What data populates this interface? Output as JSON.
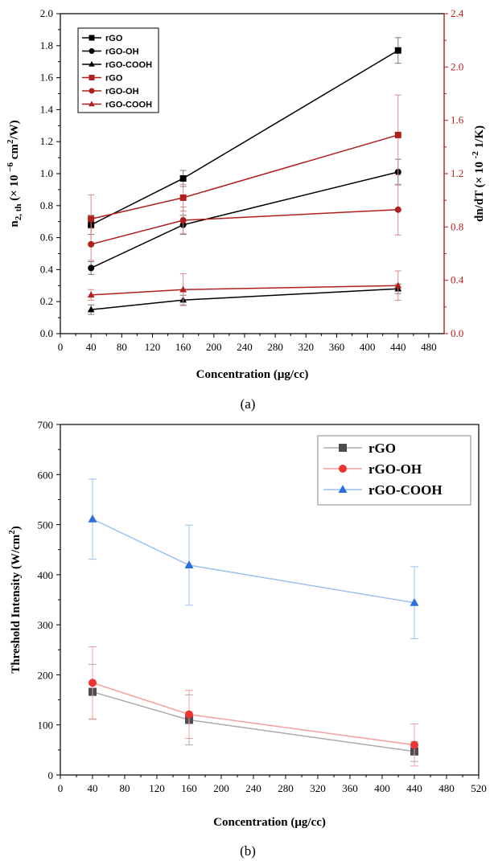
{
  "chart_data": [
    {
      "type": "line",
      "caption": "(a)",
      "xlabel": "Concentration (μg/cc)",
      "ylabel": "n2, th (× 10 -6 cm2/W)",
      "ylabel_parts": {
        "main": "n",
        "sub": "2, th",
        "mid": " (× 10 ",
        "sup1": "−6",
        "mid2": " cm",
        "sup2": "2",
        "end": "/W)"
      },
      "y2label": "dn/dT (× 10 -2 1/K)",
      "y2label_parts": {
        "main": "dn/dT (× 10 ",
        "sup": "-2",
        "end": " 1/K)"
      },
      "xlim": [
        0,
        500
      ],
      "ylim": [
        0,
        2.0
      ],
      "y2lim": [
        0,
        2.4
      ],
      "xticks": [
        "0",
        "40",
        "80",
        "120",
        "160",
        "200",
        "240",
        "280",
        "320",
        "360",
        "400",
        "440",
        "480"
      ],
      "yticks": [
        "0.0",
        "0.2",
        "0.4",
        "0.6",
        "0.8",
        "1.0",
        "1.2",
        "1.4",
        "1.6",
        "1.8",
        "2.0"
      ],
      "y2ticks": [
        "0.0",
        "0.4",
        "0.8",
        "1.2",
        "1.6",
        "2.0",
        "2.4"
      ],
      "x": [
        40,
        160,
        440
      ],
      "series": [
        {
          "name": "rGO",
          "axis": "left",
          "marker": "square",
          "color": "#000000",
          "values": [
            0.68,
            0.97,
            1.77
          ],
          "errors": [
            0.06,
            0.05,
            0.08
          ]
        },
        {
          "name": "rGO-OH",
          "axis": "left",
          "marker": "circle",
          "color": "#000000",
          "values": [
            0.41,
            0.68,
            1.01
          ],
          "errors": [
            0.04,
            0.06,
            0.08
          ]
        },
        {
          "name": "rGO-COOH",
          "axis": "left",
          "marker": "triangle",
          "color": "#000000",
          "values": [
            0.15,
            0.21,
            0.28
          ],
          "errors": [
            0.03,
            0.03,
            0.03
          ]
        },
        {
          "name": "rGO",
          "axis": "right",
          "marker": "square",
          "color": "#b01e1e",
          "values": [
            0.86,
            1.02,
            1.49
          ],
          "errors": [
            0.18,
            0.1,
            0.3
          ]
        },
        {
          "name": "rGO-OH",
          "axis": "right",
          "marker": "circle",
          "color": "#b01e1e",
          "values": [
            0.67,
            0.85,
            0.93
          ],
          "errors": [
            0.12,
            0.1,
            0.19
          ]
        },
        {
          "name": "rGO-COOH",
          "axis": "right",
          "marker": "triangle",
          "color": "#b01e1e",
          "values": [
            0.29,
            0.33,
            0.36
          ],
          "errors": [
            0.04,
            0.12,
            0.11
          ]
        }
      ],
      "legend": "top-left",
      "axis_colors": {
        "left": "#000000",
        "right": "#b01e1e"
      }
    },
    {
      "type": "line",
      "caption": "(b)",
      "xlabel": "Concentration (μg/cc)",
      "ylabel": "Threshold Intensity (W/cm2)",
      "ylabel_parts": {
        "main": "Threshold Intensity (W/cm",
        "sup": "2",
        "end": ")"
      },
      "xlim": [
        0,
        520
      ],
      "ylim": [
        0,
        700
      ],
      "xticks": [
        "0",
        "40",
        "80",
        "120",
        "160",
        "200",
        "240",
        "280",
        "320",
        "360",
        "400",
        "440",
        "480",
        "520"
      ],
      "yticks": [
        "0",
        "100",
        "200",
        "300",
        "400",
        "500",
        "600",
        "700"
      ],
      "x": [
        40,
        160,
        440
      ],
      "series": [
        {
          "name": "rGO",
          "marker": "square",
          "color": "#4d4d4d",
          "line": "#aaaaaa",
          "values": [
            166,
            110,
            47
          ],
          "errors": [
            55,
            50,
            20
          ]
        },
        {
          "name": "rGO-OH",
          "marker": "circle",
          "color": "#ee3333",
          "line": "#f2a0a0",
          "values": [
            184,
            121,
            60
          ],
          "errors": [
            72,
            48,
            42
          ]
        },
        {
          "name": "rGO-COOH",
          "marker": "triangle",
          "color": "#2a6fdb",
          "line": "#9ec0f0",
          "values": [
            511,
            419,
            344
          ],
          "errors": [
            80,
            80,
            72
          ]
        }
      ],
      "legend": "top-right"
    }
  ]
}
